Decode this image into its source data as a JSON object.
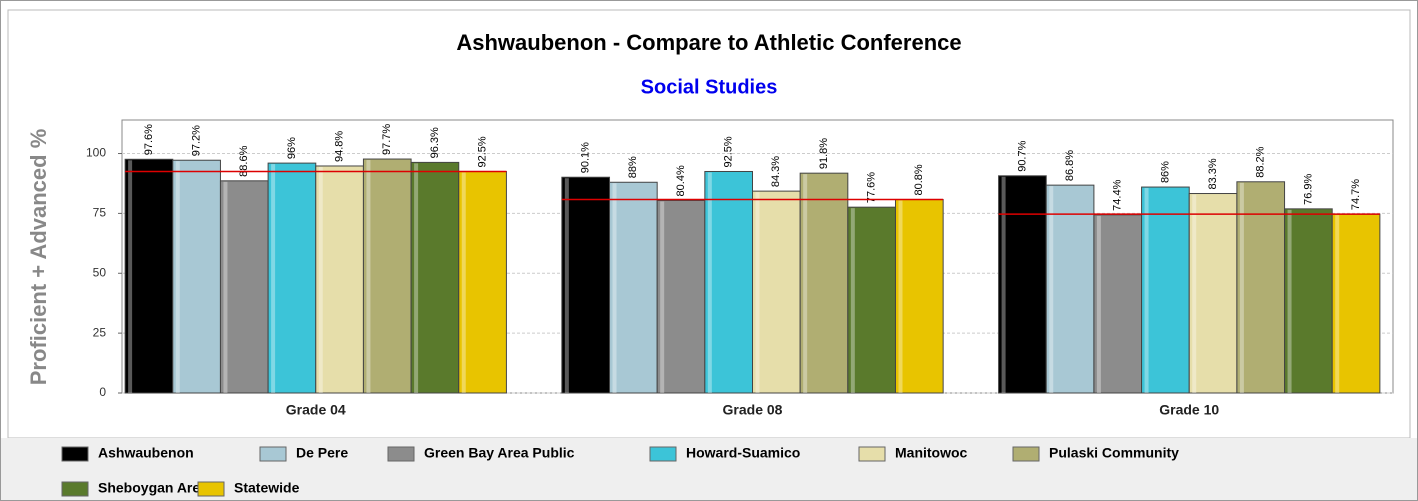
{
  "chart_data": {
    "type": "bar",
    "title": "Ashwaubenon - Compare to Athletic Conference",
    "subtitle": "Social Studies",
    "y_label": "Proficient + Advanced %",
    "categories": [
      "Grade 04",
      "Grade 08",
      "Grade 10"
    ],
    "ylim": [
      0,
      114
    ],
    "yticks": [
      0,
      25,
      50,
      75,
      100
    ],
    "grid": true,
    "legend": "bottom",
    "series": [
      {
        "name": "Ashwaubenon",
        "color": "#000000",
        "values": [
          97.6,
          90.1,
          90.7
        ],
        "value_labels": [
          "97.6%",
          "90.1%",
          "90.7%"
        ]
      },
      {
        "name": "De Pere",
        "color": "#a8c8d4",
        "values": [
          97.2,
          88,
          86.8
        ],
        "value_labels": [
          "97.2%",
          "88%",
          "86.8%"
        ]
      },
      {
        "name": "Green Bay Area Public",
        "color": "#8c8c8c",
        "values": [
          88.6,
          80.4,
          74.4
        ],
        "value_labels": [
          "88.6%",
          "80.4%",
          "74.4%"
        ]
      },
      {
        "name": "Howard-Suamico",
        "color": "#3cc4d8",
        "values": [
          96,
          92.5,
          86
        ],
        "value_labels": [
          "96%",
          "92.5%",
          "86%"
        ]
      },
      {
        "name": "Manitowoc",
        "color": "#e6deaa",
        "values": [
          94.8,
          84.3,
          83.3
        ],
        "value_labels": [
          "94.8%",
          "84.3%",
          "83.3%"
        ]
      },
      {
        "name": "Pulaski Community",
        "color": "#b0ae72",
        "values": [
          97.7,
          91.8,
          88.2
        ],
        "value_labels": [
          "97.7%",
          "91.8%",
          "88.2%"
        ]
      },
      {
        "name": "Sheboygan Area",
        "color": "#5a7a2c",
        "values": [
          96.3,
          77.6,
          76.9
        ],
        "value_labels": [
          "96.3%",
          "77.6%",
          "76.9%"
        ]
      },
      {
        "name": "Statewide",
        "color": "#e8c400",
        "values": [
          92.5,
          80.8,
          74.7
        ],
        "value_labels": [
          "92.5%",
          "80.8%",
          "74.7%"
        ]
      }
    ]
  }
}
